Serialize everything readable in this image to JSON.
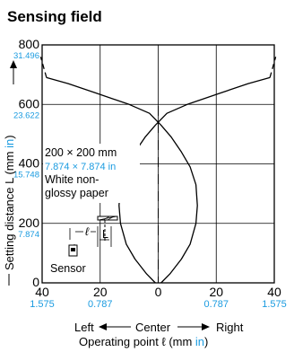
{
  "chart_data": {
    "type": "line",
    "title": "Sensing field",
    "ylim": [
      0,
      800
    ],
    "xlim": [
      -40,
      40
    ],
    "grid": true,
    "y_ticks": [
      {
        "value": 0,
        "label": "0",
        "inch": ""
      },
      {
        "value": 200,
        "label": "200",
        "inch": "7.874"
      },
      {
        "value": 400,
        "label": "400",
        "inch": "15.748"
      },
      {
        "value": 600,
        "label": "600",
        "inch": "23.622"
      },
      {
        "value": 800,
        "label": "800",
        "inch": "31.496"
      }
    ],
    "x_ticks": [
      {
        "value": -40,
        "label": "40",
        "inch": "1.575"
      },
      {
        "value": -20,
        "label": "20",
        "inch": "0.787"
      },
      {
        "value": 0,
        "label": "0",
        "inch": ""
      },
      {
        "value": 20,
        "label": "20",
        "inch": "0.787"
      },
      {
        "value": 40,
        "label": "40",
        "inch": "1.575"
      }
    ],
    "ylabel": {
      "text": "Setting distance L (mm ",
      "unit": "in",
      "close": ")"
    },
    "xlabel": {
      "text": "Operating point ℓ (mm ",
      "unit": "in",
      "close": ")"
    },
    "direction_labels": {
      "left": "Left",
      "center": "Center",
      "right": "Right"
    },
    "series": [
      {
        "side": "left",
        "solid_x": [
          -1,
          -4,
          -8,
          -11,
          -13,
          -13.5,
          -13,
          -11,
          -8,
          -4.5,
          -1,
          3,
          10,
          22,
          31,
          38.5
        ],
        "solid_y": [
          0,
          30,
          80,
          130,
          200,
          260,
          330,
          390,
          440,
          490,
          530,
          570,
          600,
          640,
          670,
          690
        ],
        "dashed_x": [
          38.5,
          40.5
        ],
        "dashed_y": [
          690,
          760
        ]
      },
      {
        "side": "right",
        "solid_x": [
          1,
          4,
          8,
          11,
          13,
          13.5,
          13,
          11,
          8,
          4.5,
          1,
          -3,
          -10,
          -22,
          -31,
          -38.5
        ],
        "solid_y": [
          0,
          30,
          80,
          130,
          200,
          260,
          330,
          390,
          440,
          490,
          530,
          570,
          600,
          640,
          670,
          690
        ],
        "dashed_x": [
          -38.5,
          -40.5
        ],
        "dashed_y": [
          690,
          760
        ]
      }
    ],
    "annotations": {
      "object_size": "200 × 200 mm",
      "object_size_in": "7.874 × 7.874 in",
      "object_line1": "White non-",
      "object_line2": "glossy paper",
      "ell": "ℓ",
      "L": "L",
      "sensor": "Sensor"
    }
  },
  "colors": {
    "accent": "#1a9be0",
    "ink": "#000000"
  }
}
